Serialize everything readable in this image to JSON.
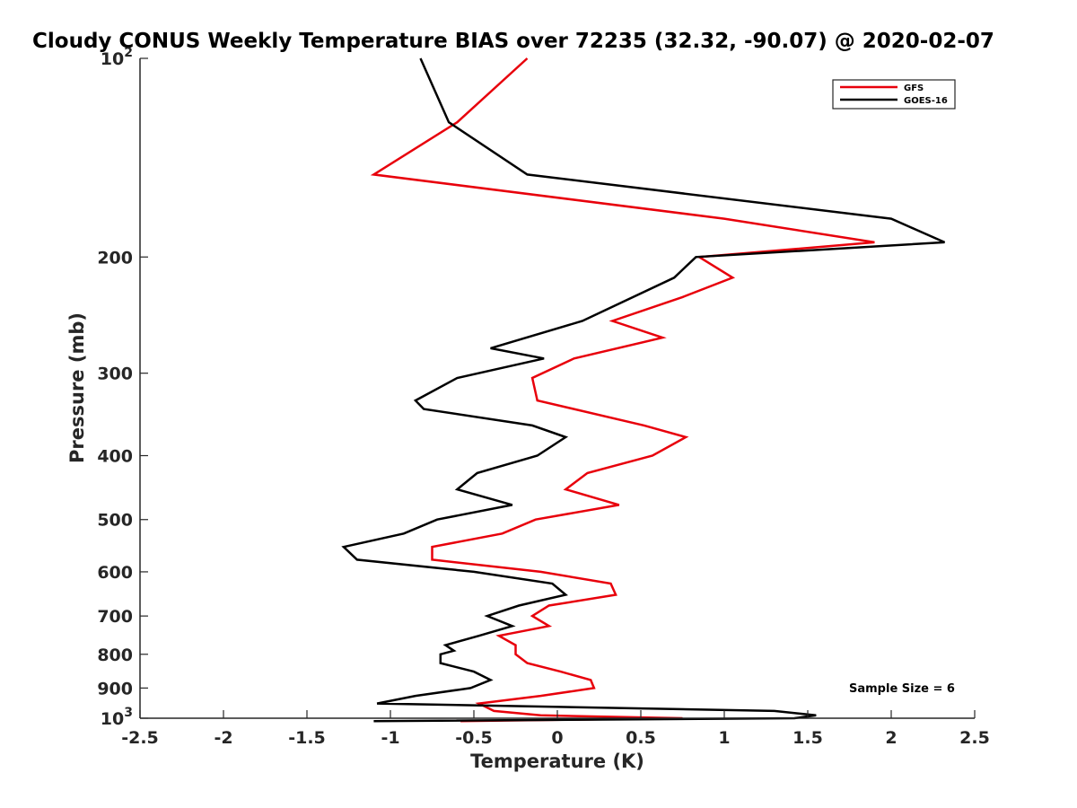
{
  "chart_data": {
    "type": "line",
    "title": "Cloudy CONUS Weekly Temperature BIAS over 72235 (32.32, -90.07) @ 2020-02-07",
    "xlabel": "Temperature (K)",
    "ylabel": "Pressure (mb)",
    "xlim": [
      -2.5,
      2.5
    ],
    "ylim": [
      100,
      1000
    ],
    "y_scale": "log",
    "y_reversed": true,
    "grid": false,
    "legend_position": "top-right",
    "x_ticks": [
      -2.5,
      -2,
      -1.5,
      -1,
      -0.5,
      0,
      0.5,
      1,
      1.5,
      2,
      2.5
    ],
    "x_tick_labels": [
      "-2.5",
      "-2",
      "-1.5",
      "-1",
      "-0.5",
      "0",
      "0.5",
      "1",
      "1.5",
      "2",
      "2.5"
    ],
    "y_ticks": [
      100,
      200,
      300,
      400,
      500,
      600,
      700,
      800,
      900,
      1000
    ],
    "y_tick_labels": [
      {
        "base": "10",
        "exp": "2"
      },
      {
        "base": "200",
        "exp": ""
      },
      {
        "base": "300",
        "exp": ""
      },
      {
        "base": "400",
        "exp": ""
      },
      {
        "base": "500",
        "exp": ""
      },
      {
        "base": "600",
        "exp": ""
      },
      {
        "base": "700",
        "exp": ""
      },
      {
        "base": "800",
        "exp": ""
      },
      {
        "base": "900",
        "exp": ""
      },
      {
        "base": "10",
        "exp": "3"
      }
    ],
    "annotation": "Sample Size = 6",
    "series": [
      {
        "name": "GFS",
        "color": "#e8000b",
        "points": [
          [
            -0.18,
            100
          ],
          [
            -0.6,
            125
          ],
          [
            -1.1,
            150
          ],
          [
            1.0,
            175
          ],
          [
            1.9,
            190
          ],
          [
            0.85,
            200
          ],
          [
            1.05,
            215
          ],
          [
            0.75,
            230
          ],
          [
            0.33,
            250
          ],
          [
            0.63,
            265
          ],
          [
            0.1,
            285
          ],
          [
            -0.15,
            305
          ],
          [
            -0.12,
            330
          ],
          [
            0.52,
            360
          ],
          [
            0.77,
            375
          ],
          [
            0.57,
            400
          ],
          [
            0.18,
            425
          ],
          [
            0.05,
            450
          ],
          [
            0.37,
            475
          ],
          [
            -0.13,
            500
          ],
          [
            -0.33,
            525
          ],
          [
            -0.75,
            550
          ],
          [
            -0.75,
            575
          ],
          [
            -0.1,
            600
          ],
          [
            0.32,
            625
          ],
          [
            0.35,
            650
          ],
          [
            -0.05,
            675
          ],
          [
            -0.15,
            700
          ],
          [
            -0.05,
            725
          ],
          [
            -0.35,
            750
          ],
          [
            -0.25,
            775
          ],
          [
            -0.25,
            800
          ],
          [
            -0.18,
            825
          ],
          [
            0.02,
            850
          ],
          [
            0.2,
            875
          ],
          [
            0.22,
            900
          ],
          [
            -0.1,
            925
          ],
          [
            -0.47,
            950
          ],
          [
            -0.38,
            975
          ],
          [
            -0.1,
            990
          ],
          [
            0.75,
            1000
          ],
          [
            0.1,
            1005
          ],
          [
            -0.58,
            1010
          ]
        ]
      },
      {
        "name": "GOES-16",
        "color": "#000000",
        "points": [
          [
            -0.82,
            100
          ],
          [
            -0.65,
            125
          ],
          [
            -0.18,
            150
          ],
          [
            2.0,
            175
          ],
          [
            2.32,
            190
          ],
          [
            0.83,
            200
          ],
          [
            0.7,
            215
          ],
          [
            0.15,
            250
          ],
          [
            -0.4,
            275
          ],
          [
            -0.08,
            285
          ],
          [
            -0.6,
            305
          ],
          [
            -0.85,
            330
          ],
          [
            -0.8,
            340
          ],
          [
            -0.15,
            360
          ],
          [
            0.05,
            375
          ],
          [
            -0.12,
            400
          ],
          [
            -0.48,
            425
          ],
          [
            -0.6,
            450
          ],
          [
            -0.27,
            475
          ],
          [
            -0.72,
            500
          ],
          [
            -0.92,
            525
          ],
          [
            -1.28,
            550
          ],
          [
            -1.2,
            575
          ],
          [
            -0.5,
            600
          ],
          [
            -0.03,
            625
          ],
          [
            0.05,
            650
          ],
          [
            -0.23,
            675
          ],
          [
            -0.42,
            700
          ],
          [
            -0.27,
            725
          ],
          [
            -0.47,
            750
          ],
          [
            -0.67,
            775
          ],
          [
            -0.62,
            790
          ],
          [
            -0.7,
            800
          ],
          [
            -0.7,
            825
          ],
          [
            -0.5,
            850
          ],
          [
            -0.4,
            875
          ],
          [
            -0.52,
            900
          ],
          [
            -0.85,
            925
          ],
          [
            -1.08,
            950
          ],
          [
            1.3,
            975
          ],
          [
            1.55,
            990
          ],
          [
            1.42,
            1000
          ],
          [
            -1.1,
            1010
          ]
        ]
      }
    ]
  }
}
